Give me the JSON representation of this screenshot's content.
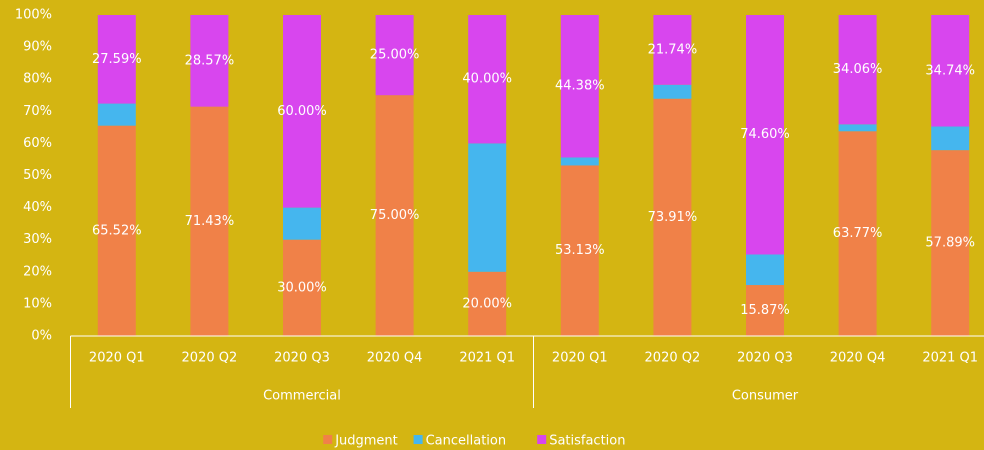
{
  "chart_data": {
    "type": "stacked_bar_100",
    "categories": [
      "2020 Q1",
      "2020 Q2",
      "2020 Q3",
      "2020 Q4",
      "2021 Q1",
      "2020 Q1",
      "2020 Q2",
      "2020 Q3",
      "2020 Q4",
      "2021 Q1"
    ],
    "group_labels": [
      "Commercial",
      "Consumer"
    ],
    "series": [
      {
        "name": "Judgment",
        "color": "#F08148",
        "values": [
          65.52,
          71.43,
          30,
          75,
          20,
          53.13,
          73.91,
          15.87,
          63.77,
          57.89
        ],
        "value_labels": [
          "65.52%",
          "71.43%",
          "30.00%",
          "75.00%",
          "20.00%",
          "53.13%",
          "73.91%",
          "15.87%",
          "63.77%",
          "57.89%"
        ]
      },
      {
        "name": "Cancellation",
        "color": "#45B6EE",
        "values": [
          6.89,
          0,
          10,
          0,
          40,
          2.49,
          4.35,
          9.53,
          2.17,
          7.37
        ]
      },
      {
        "name": "Satisfaction",
        "color": "#D846EE",
        "values": [
          27.59,
          28.57,
          60,
          25,
          40,
          44.38,
          21.74,
          74.6,
          34.06,
          34.74
        ],
        "value_labels": [
          "27.59%",
          "28.57%",
          "60.00%",
          "25.00%",
          "40.00%",
          "44.38%",
          "21.74%",
          "74.60%",
          "34.06%",
          "34.74%"
        ]
      }
    ],
    "ylim": [
      0,
      100
    ],
    "yticks": [
      {
        "value": 0,
        "label": "0%"
      },
      {
        "value": 10,
        "label": "10%"
      },
      {
        "value": 20,
        "label": "20%"
      },
      {
        "value": 30,
        "label": "30%"
      },
      {
        "value": 40,
        "label": "40%"
      },
      {
        "value": 50,
        "label": "50%"
      },
      {
        "value": 60,
        "label": "60%"
      },
      {
        "value": 70,
        "label": "70%"
      },
      {
        "value": 80,
        "label": "80%"
      },
      {
        "value": 90,
        "label": "90%"
      },
      {
        "value": 100,
        "label": "100%"
      }
    ],
    "legend": "bottom"
  }
}
